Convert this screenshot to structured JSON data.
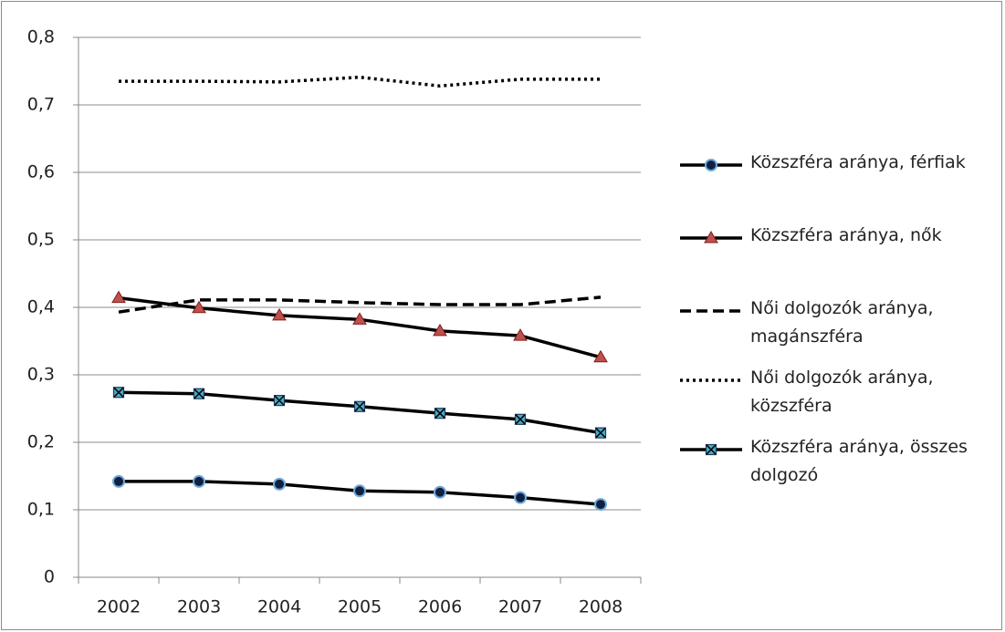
{
  "chart_data": {
    "type": "line",
    "categories": [
      "2002",
      "2003",
      "2004",
      "2005",
      "2006",
      "2007",
      "2008"
    ],
    "ylim": [
      0,
      0.8
    ],
    "yticks": [
      0,
      {
        "value": 0.1,
        "label": "0,1"
      },
      {
        "value": 0.2,
        "label": "0,2"
      },
      {
        "value": 0.3,
        "label": "0,3"
      },
      {
        "value": 0.4,
        "label": "0,4"
      },
      {
        "value": 0.5,
        "label": "0,5"
      },
      {
        "value": 0.6,
        "label": "0,6"
      },
      {
        "value": 0.7,
        "label": "0,7"
      },
      {
        "value": 0.8,
        "label": "0,8"
      }
    ],
    "grid": true,
    "legend": "right",
    "series": [
      {
        "name": "Közszféra aránya, férfiak",
        "color": "#000000",
        "dash": "solid",
        "marker": "circle",
        "marker_fill": "#10213f",
        "marker_stroke": "#6fa8dc",
        "values": [
          0.142,
          0.142,
          0.138,
          0.128,
          0.126,
          0.118,
          0.108
        ]
      },
      {
        "name": "Közszféra aránya, nők",
        "color": "#000000",
        "dash": "solid",
        "marker": "triangle",
        "marker_fill": "#c0504d",
        "marker_stroke": "#7a1e1b",
        "values": [
          0.414,
          0.399,
          0.388,
          0.382,
          0.365,
          0.358,
          0.326
        ]
      },
      {
        "name": "Női dolgozók aránya, magánszféra",
        "color": "#000000",
        "dash": "dashed",
        "marker": "none",
        "values": [
          0.393,
          0.411,
          0.411,
          0.407,
          0.404,
          0.404,
          0.415
        ]
      },
      {
        "name": "Női dolgozók aránya, közszféra",
        "color": "#000000",
        "dash": "dotted",
        "marker": "none",
        "values": [
          0.735,
          0.735,
          0.734,
          0.741,
          0.728,
          0.738,
          0.738
        ]
      },
      {
        "name": "Közszféra aránya, összes dolgozó",
        "color": "#000000",
        "dash": "solid",
        "marker": "x-square",
        "marker_fill": "#4bacc6",
        "marker_stroke": "#1f3a5f",
        "values": [
          0.274,
          0.272,
          0.262,
          0.253,
          0.243,
          0.234,
          0.214
        ]
      }
    ]
  }
}
